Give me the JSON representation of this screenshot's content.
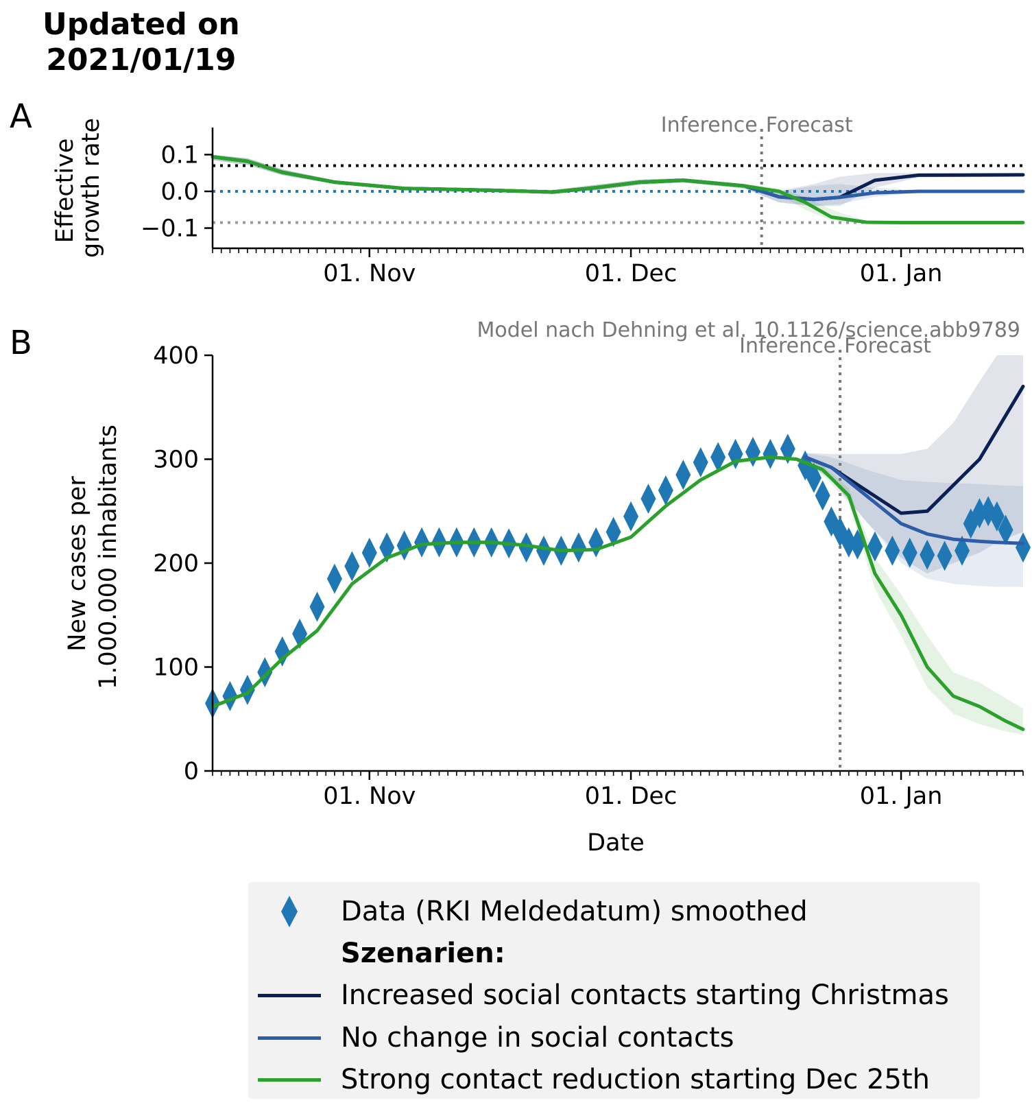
{
  "header": {
    "updated_text": "Updated on\n2021/01/19"
  },
  "colors": {
    "data": "#1f77b4",
    "increased": "#0b1f52",
    "no_change": "#2e5da8",
    "strong_reduction": "#2ca02c",
    "dotted_black": "#000000",
    "dotted_blue": "#1f77b4",
    "dotted_grey": "#999999",
    "divider": "#777777"
  },
  "panel_a": {
    "letter": "A",
    "ylabel_line1": "Effective",
    "ylabel_line2": "growth rate",
    "inference_label": "Inference",
    "forecast_label": "Forecast"
  },
  "panel_b": {
    "letter": "B",
    "ylabel_line1": "New cases per",
    "ylabel_line2": "1.000.000 inhabitants",
    "xlabel": "Date",
    "source_note": "Model nach Dehning et al. 10.1126/science.abb9789",
    "inference_label": "Inference",
    "forecast_label": "Forecast"
  },
  "legend": {
    "data": "Data (RKI Meldedatum) smoothed",
    "heading": "Szenarien:",
    "increased": "Increased social contacts starting Christmas",
    "no_change": "No change in social contacts",
    "strong_reduction": "Strong contact reduction starting Dec 25th"
  },
  "chart_data": [
    {
      "type": "line",
      "panel": "A",
      "xlabel": "",
      "ylabel": "Effective growth rate",
      "x_range": [
        "2020-10-14",
        "2021-01-15"
      ],
      "x_ticks": [
        "01. Nov",
        "01. Dec",
        "01. Jan"
      ],
      "x_tick_dates": [
        "2020-11-01",
        "2020-12-01",
        "2021-01-01"
      ],
      "y_ticks": [
        "0.1",
        "0.0",
        "−0.1"
      ],
      "y_tick_values": [
        0.1,
        0.0,
        -0.1
      ],
      "ylim": [
        -0.155,
        0.155
      ],
      "divider_date": "2020-12-16",
      "hlines": [
        {
          "y": 0.07,
          "style": "dotted",
          "color": "#000000"
        },
        {
          "y": 0.0,
          "style": "dotted",
          "color": "#1f77b4"
        },
        {
          "y": -0.085,
          "style": "dotted",
          "color": "#999999"
        }
      ],
      "series": [
        {
          "name": "Increased social contacts starting Christmas",
          "color": "#0b1f52",
          "x": [
            "2020-10-14",
            "2020-10-18",
            "2020-10-22",
            "2020-10-28",
            "2020-11-05",
            "2020-11-15",
            "2020-11-22",
            "2020-11-27",
            "2020-12-02",
            "2020-12-07",
            "2020-12-14",
            "2020-12-18",
            "2020-12-22",
            "2020-12-25",
            "2020-12-29",
            "2021-01-03",
            "2021-01-15"
          ],
          "y": [
            0.094,
            0.082,
            0.052,
            0.025,
            0.008,
            0.003,
            -0.002,
            0.01,
            0.025,
            0.03,
            0.015,
            -0.015,
            -0.022,
            -0.016,
            0.03,
            0.044,
            0.045
          ],
          "band_upper": [
            0.1,
            0.09,
            0.06,
            0.03,
            0.012,
            0.006,
            0.004,
            0.018,
            0.032,
            0.036,
            0.02,
            0.0,
            0.02,
            0.04,
            0.05,
            0.05,
            0.05
          ],
          "band_lower": [
            0.085,
            0.072,
            0.044,
            0.02,
            0.004,
            0.0,
            -0.006,
            0.003,
            0.018,
            0.024,
            0.008,
            -0.03,
            -0.04,
            -0.04,
            0.01,
            0.038,
            0.04
          ]
        },
        {
          "name": "No change in social contacts",
          "color": "#2e5da8",
          "x": [
            "2020-10-14",
            "2020-10-18",
            "2020-10-22",
            "2020-10-28",
            "2020-11-05",
            "2020-11-15",
            "2020-11-22",
            "2020-11-27",
            "2020-12-02",
            "2020-12-07",
            "2020-12-14",
            "2020-12-18",
            "2020-12-22",
            "2020-12-25",
            "2020-12-29",
            "2021-01-03",
            "2021-01-15"
          ],
          "y": [
            0.094,
            0.082,
            0.052,
            0.025,
            0.008,
            0.003,
            -0.002,
            0.01,
            0.025,
            0.03,
            0.015,
            -0.015,
            -0.022,
            -0.016,
            -0.004,
            0.0,
            0.0
          ],
          "band_upper": [
            0.1,
            0.09,
            0.06,
            0.03,
            0.012,
            0.006,
            0.004,
            0.018,
            0.032,
            0.036,
            0.02,
            0.0,
            0.015,
            0.02,
            0.01,
            0.003,
            0.002
          ],
          "band_lower": [
            0.085,
            0.072,
            0.044,
            0.02,
            0.004,
            0.0,
            -0.006,
            0.003,
            0.018,
            0.024,
            0.008,
            -0.03,
            -0.04,
            -0.035,
            -0.015,
            -0.003,
            -0.002
          ]
        },
        {
          "name": "Strong contact reduction starting Dec 25th",
          "color": "#2ca02c",
          "x": [
            "2020-10-14",
            "2020-10-18",
            "2020-10-22",
            "2020-10-28",
            "2020-11-05",
            "2020-11-15",
            "2020-11-22",
            "2020-11-27",
            "2020-12-02",
            "2020-12-07",
            "2020-12-14",
            "2020-12-18",
            "2020-12-21",
            "2020-12-24",
            "2020-12-28",
            "2021-01-01",
            "2021-01-15"
          ],
          "y": [
            0.094,
            0.082,
            0.052,
            0.025,
            0.008,
            0.003,
            -0.002,
            0.01,
            0.025,
            0.03,
            0.015,
            0.0,
            -0.03,
            -0.07,
            -0.084,
            -0.085,
            -0.085
          ],
          "band_upper": [
            0.1,
            0.09,
            0.06,
            0.03,
            0.012,
            0.006,
            0.004,
            0.018,
            0.032,
            0.036,
            0.02,
            0.008,
            -0.015,
            -0.05,
            -0.08,
            -0.083,
            -0.084
          ],
          "band_lower": [
            0.085,
            0.072,
            0.044,
            0.02,
            0.004,
            0.0,
            -0.006,
            0.003,
            0.018,
            0.024,
            0.008,
            -0.008,
            -0.05,
            -0.08,
            -0.088,
            -0.087,
            -0.086
          ]
        }
      ]
    },
    {
      "type": "line",
      "panel": "B",
      "xlabel": "Date",
      "ylabel": "New cases per 1.000.000 inhabitants",
      "x_range": [
        "2020-10-14",
        "2021-01-15"
      ],
      "x_ticks": [
        "01. Nov",
        "01. Dec",
        "01. Jan"
      ],
      "x_tick_dates": [
        "2020-11-01",
        "2020-12-01",
        "2021-01-01"
      ],
      "y_ticks": [
        "0",
        "100",
        "200",
        "300",
        "400"
      ],
      "ylim": [
        0,
        400
      ],
      "divider_date": "2020-12-25",
      "data_series": {
        "name": "Data (RKI Meldedatum) smoothed",
        "color": "#1f77b4",
        "x": [
          "2020-10-14",
          "2020-10-16",
          "2020-10-18",
          "2020-10-20",
          "2020-10-22",
          "2020-10-24",
          "2020-10-26",
          "2020-10-28",
          "2020-10-30",
          "2020-11-01",
          "2020-11-03",
          "2020-11-05",
          "2020-11-07",
          "2020-11-09",
          "2020-11-11",
          "2020-11-13",
          "2020-11-15",
          "2020-11-17",
          "2020-11-19",
          "2020-11-21",
          "2020-11-23",
          "2020-11-25",
          "2020-11-27",
          "2020-11-29",
          "2020-12-01",
          "2020-12-03",
          "2020-12-05",
          "2020-12-07",
          "2020-12-09",
          "2020-12-11",
          "2020-12-13",
          "2020-12-15",
          "2020-12-17",
          "2020-12-19",
          "2020-12-21",
          "2020-12-22",
          "2020-12-23",
          "2020-12-24",
          "2020-12-25",
          "2020-12-26",
          "2020-12-27",
          "2020-12-29",
          "2020-12-31",
          "2021-01-02",
          "2021-01-04",
          "2021-01-06",
          "2021-01-08",
          "2021-01-09",
          "2021-01-10",
          "2021-01-11",
          "2021-01-12",
          "2021-01-13",
          "2021-01-15"
        ],
        "y": [
          65,
          72,
          78,
          95,
          115,
          132,
          158,
          185,
          197,
          210,
          215,
          217,
          220,
          220,
          220,
          220,
          220,
          219,
          215,
          212,
          212,
          215,
          220,
          230,
          245,
          262,
          270,
          285,
          297,
          302,
          305,
          307,
          305,
          310,
          294,
          282,
          265,
          240,
          230,
          220,
          218,
          216,
          212,
          210,
          208,
          207,
          212,
          238,
          248,
          250,
          245,
          232,
          215
        ]
      },
      "series": [
        {
          "name": "Increased social contacts starting Christmas",
          "color": "#0b1f52",
          "x": [
            "2020-12-21",
            "2020-12-24",
            "2020-12-28",
            "2021-01-01",
            "2021-01-04",
            "2021-01-07",
            "2021-01-10",
            "2021-01-12",
            "2021-01-15"
          ],
          "y": [
            302,
            292,
            270,
            248,
            250,
            275,
            300,
            328,
            370
          ],
          "band_upper": [
            306,
            305,
            305,
            305,
            310,
            335,
            375,
            400,
            400
          ],
          "band_lower": [
            298,
            280,
            240,
            205,
            190,
            200,
            210,
            220,
            230
          ]
        },
        {
          "name": "No change in social contacts",
          "color": "#2e5da8",
          "x": [
            "2020-12-21",
            "2020-12-24",
            "2020-12-28",
            "2021-01-01",
            "2021-01-04",
            "2021-01-07",
            "2021-01-10",
            "2021-01-12",
            "2021-01-15"
          ],
          "y": [
            302,
            292,
            265,
            238,
            228,
            223,
            221,
            220,
            219
          ],
          "band_upper": [
            306,
            302,
            290,
            280,
            278,
            277,
            276,
            275,
            274
          ],
          "band_lower": [
            298,
            280,
            240,
            200,
            185,
            180,
            178,
            177,
            177
          ]
        },
        {
          "name": "Strong contact reduction starting Dec 25th",
          "color": "#2ca02c",
          "x": [
            "2020-10-14",
            "2020-10-18",
            "2020-10-22",
            "2020-10-26",
            "2020-10-30",
            "2020-11-03",
            "2020-11-07",
            "2020-11-11",
            "2020-11-15",
            "2020-11-19",
            "2020-11-23",
            "2020-11-27",
            "2020-12-01",
            "2020-12-05",
            "2020-12-09",
            "2020-12-13",
            "2020-12-17",
            "2020-12-20",
            "2020-12-23",
            "2020-12-26",
            "2020-12-29",
            "2021-01-01",
            "2021-01-04",
            "2021-01-07",
            "2021-01-10",
            "2021-01-13",
            "2021-01-15"
          ],
          "y": [
            62,
            75,
            108,
            135,
            180,
            205,
            218,
            220,
            220,
            217,
            212,
            213,
            225,
            255,
            280,
            298,
            302,
            300,
            290,
            265,
            190,
            150,
            100,
            72,
            62,
            48,
            40
          ],
          "band_upper": [
            64,
            77,
            110,
            137,
            182,
            207,
            220,
            222,
            222,
            219,
            214,
            215,
            227,
            257,
            282,
            300,
            304,
            302,
            294,
            272,
            205,
            170,
            130,
            95,
            85,
            70,
            60
          ],
          "band_lower": [
            60,
            73,
            106,
            133,
            178,
            203,
            216,
            218,
            218,
            215,
            210,
            211,
            223,
            253,
            278,
            296,
            300,
            298,
            285,
            258,
            175,
            130,
            80,
            55,
            45,
            38,
            35
          ]
        }
      ]
    }
  ]
}
